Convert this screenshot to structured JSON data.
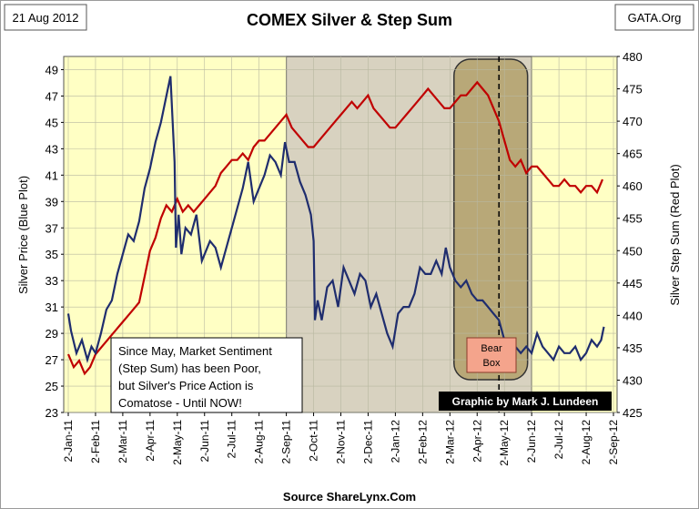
{
  "header": {
    "date": "21 Aug 2012",
    "title": "COMEX Silver & Step Sum",
    "source_tag": "GATA.Org"
  },
  "footer": {
    "source": "Source ShareLynx.Com"
  },
  "annotations": {
    "note_lines": [
      "Since May, Market Sentiment",
      "(Step Sum) has been Poor,",
      "but Silver's Price Action is",
      "Comatose - Until NOW!"
    ],
    "bear_box_lines": [
      "Bear",
      "Box"
    ],
    "credit": "Graphic by Mark J. Lundeen"
  },
  "colors": {
    "plot_bg": "#ffffc4",
    "shade": "#d8d2c0",
    "bear_box_fill": "#b8a878",
    "silver_line": "#1f2d6e",
    "stepsum_line": "#c00000",
    "bear_label_fill": "#f4a48c",
    "credit_bg": "#000000"
  },
  "chart_data": {
    "type": "line",
    "title": "COMEX Silver & Step Sum",
    "xlabel": "",
    "ylabel": "Silver Price (Blue Plot)",
    "y2label": "Silver Step Sum (Red Plot)",
    "ylim": [
      23,
      50
    ],
    "y2lim": [
      425,
      480
    ],
    "yticks": [
      23,
      25,
      27,
      29,
      31,
      33,
      35,
      37,
      39,
      41,
      43,
      45,
      47,
      49
    ],
    "y2ticks": [
      425,
      430,
      435,
      440,
      445,
      450,
      455,
      460,
      465,
      470,
      475,
      480
    ],
    "x_month_range": [
      0,
      20
    ],
    "tick_labels": [
      "2-Jan-11",
      "2-Feb-11",
      "2-Mar-11",
      "2-Apr-11",
      "2-May-11",
      "2-Jun-11",
      "2-Jul-11",
      "2-Aug-11",
      "2-Sep-11",
      "2-Oct-11",
      "2-Nov-11",
      "2-Dec-11",
      "2-Jan-12",
      "2-Feb-12",
      "2-Mar-12",
      "2-Apr-12",
      "2-May-12",
      "2-Jun-12",
      "2-Jul-12",
      "2-Aug-12",
      "2-Sep-12"
    ],
    "shaded_region": {
      "from": 8.0,
      "to": 17.0
    },
    "bear_box": {
      "from": 14.15,
      "to": 16.85
    },
    "dashed_marker": 15.8,
    "series": [
      {
        "name": "Silver Price (Blue Plot)",
        "axis": "left",
        "x": [
          0,
          0.1,
          0.3,
          0.5,
          0.7,
          0.85,
          1.0,
          1.2,
          1.4,
          1.6,
          1.8,
          2.0,
          2.2,
          2.4,
          2.6,
          2.8,
          3.0,
          3.2,
          3.4,
          3.6,
          3.75,
          3.9,
          3.95,
          4.05,
          4.15,
          4.3,
          4.5,
          4.7,
          4.9,
          5.0,
          5.2,
          5.4,
          5.6,
          5.8,
          6.0,
          6.2,
          6.4,
          6.6,
          6.8,
          7.0,
          7.2,
          7.4,
          7.6,
          7.8,
          7.95,
          8.1,
          8.3,
          8.5,
          8.7,
          8.9,
          9.0,
          9.05,
          9.15,
          9.3,
          9.5,
          9.7,
          9.9,
          10.1,
          10.3,
          10.5,
          10.7,
          10.9,
          11.1,
          11.3,
          11.5,
          11.7,
          11.9,
          12.1,
          12.3,
          12.5,
          12.7,
          12.9,
          13.1,
          13.3,
          13.5,
          13.7,
          13.85,
          14.0,
          14.2,
          14.4,
          14.6,
          14.8,
          15.0,
          15.2,
          15.4,
          15.6,
          15.8,
          16.0,
          16.2,
          16.4,
          16.6,
          16.8,
          17.0,
          17.2,
          17.4,
          17.6,
          17.8,
          18.0,
          18.2,
          18.4,
          18.6,
          18.8,
          19.0,
          19.2,
          19.4,
          19.55,
          19.65
        ],
        "values": [
          30.5,
          29.2,
          27.5,
          28.5,
          27.0,
          28.0,
          27.5,
          29.0,
          30.8,
          31.5,
          33.5,
          35.0,
          36.5,
          36.0,
          37.5,
          40.0,
          41.5,
          43.5,
          45.0,
          47.0,
          48.5,
          42.0,
          35.5,
          38.0,
          35.0,
          37.0,
          36.5,
          38.0,
          34.5,
          35.0,
          36.0,
          35.5,
          34.0,
          35.5,
          37.0,
          38.5,
          40.0,
          42.0,
          39.0,
          40.0,
          41.0,
          42.5,
          42.0,
          41.0,
          43.5,
          42.0,
          42.0,
          40.5,
          39.5,
          38.0,
          36.0,
          30.0,
          31.5,
          30.0,
          32.5,
          33.0,
          31.0,
          34.0,
          33.0,
          32.0,
          33.5,
          33.0,
          31.0,
          32.0,
          30.5,
          29.0,
          28.0,
          30.5,
          31.0,
          31.0,
          32.0,
          34.0,
          33.5,
          33.5,
          34.5,
          33.5,
          35.5,
          34.0,
          33.0,
          32.5,
          33.0,
          32.0,
          31.5,
          31.5,
          31.0,
          30.5,
          30.0,
          28.5,
          28.5,
          28.0,
          27.5,
          28.0,
          27.5,
          29.0,
          28.0,
          27.5,
          27.0,
          28.0,
          27.5,
          27.5,
          28.0,
          27.0,
          27.5,
          28.5,
          28.0,
          28.5,
          29.5
        ]
      },
      {
        "name": "Silver Step Sum (Red Plot)",
        "axis": "right",
        "x": [
          0,
          0.2,
          0.4,
          0.6,
          0.8,
          1.0,
          1.2,
          1.4,
          1.6,
          1.8,
          2.0,
          2.2,
          2.4,
          2.6,
          2.8,
          3.0,
          3.2,
          3.4,
          3.6,
          3.8,
          4.0,
          4.2,
          4.4,
          4.6,
          4.8,
          5.0,
          5.2,
          5.4,
          5.6,
          5.8,
          6.0,
          6.2,
          6.4,
          6.6,
          6.8,
          7.0,
          7.2,
          7.4,
          7.6,
          7.8,
          8.0,
          8.2,
          8.4,
          8.6,
          8.8,
          9.0,
          9.2,
          9.4,
          9.6,
          9.8,
          10.0,
          10.2,
          10.4,
          10.6,
          10.8,
          11.0,
          11.2,
          11.4,
          11.6,
          11.8,
          12.0,
          12.2,
          12.4,
          12.6,
          12.8,
          13.0,
          13.2,
          13.4,
          13.6,
          13.8,
          14.0,
          14.2,
          14.4,
          14.6,
          14.8,
          15.0,
          15.2,
          15.4,
          15.6,
          15.8,
          16.0,
          16.2,
          16.4,
          16.6,
          16.8,
          17.0,
          17.2,
          17.4,
          17.6,
          17.8,
          18.0,
          18.2,
          18.4,
          18.6,
          18.8,
          19.0,
          19.2,
          19.4,
          19.6
        ],
        "values": [
          434,
          432,
          433,
          431,
          432,
          434,
          435,
          436,
          437,
          438,
          439,
          440,
          441,
          442,
          446,
          450,
          452,
          455,
          457,
          456,
          458,
          456,
          457,
          456,
          457,
          458,
          459,
          460,
          462,
          463,
          464,
          464,
          465,
          464,
          466,
          467,
          467,
          468,
          469,
          470,
          471,
          469,
          468,
          467,
          466,
          466,
          467,
          468,
          469,
          470,
          471,
          472,
          473,
          472,
          473,
          474,
          472,
          471,
          470,
          469,
          469,
          470,
          471,
          472,
          473,
          474,
          475,
          474,
          473,
          472,
          472,
          473,
          474,
          474,
          475,
          476,
          475,
          474,
          472,
          470,
          467,
          464,
          463,
          464,
          462,
          463,
          463,
          462,
          461,
          460,
          460,
          461,
          460,
          460,
          459,
          460,
          460,
          459,
          461
        ]
      }
    ]
  }
}
